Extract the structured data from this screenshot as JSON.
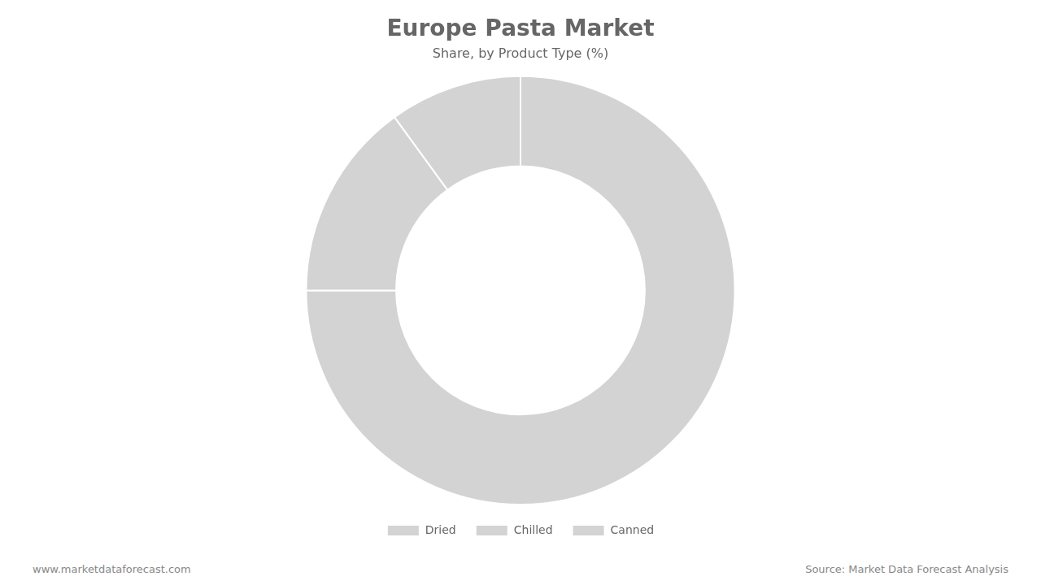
{
  "chart_data": {
    "type": "doughnut",
    "title": "Europe Pasta Market",
    "subtitle": "Share, by Product Type (%)",
    "categories": [
      "Dried",
      "Chilled",
      "Canned"
    ],
    "values": [
      75.0,
      15.0,
      10.0
    ],
    "color": "#d3d3d3",
    "legend": "bottom",
    "annotations": [
      "www.marketdataforecast.com",
      "Source: Market Data Forecast Analysis"
    ]
  }
}
